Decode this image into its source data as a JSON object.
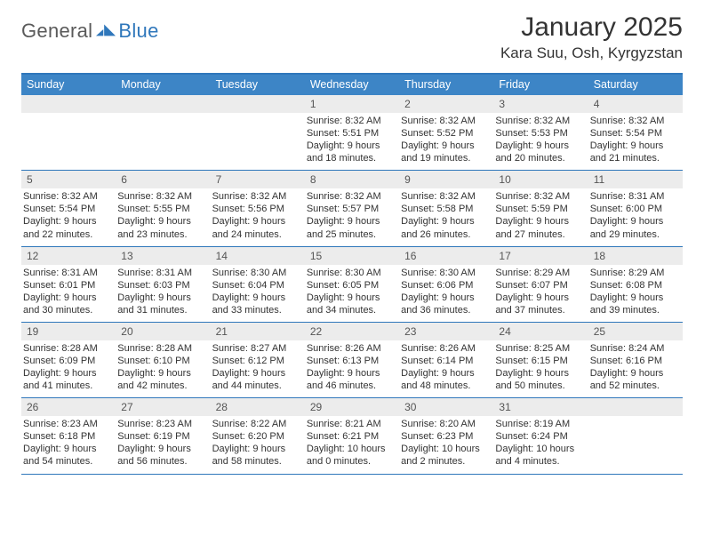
{
  "brand": {
    "general": "General",
    "blue": "Blue"
  },
  "title": "January 2025",
  "location": "Kara Suu, Osh, Kyrgyzstan",
  "colors": {
    "header_bar": "#3d85c6",
    "header_border": "#2f77bb",
    "row_border": "#2f77bb",
    "daynum_bg": "#ececec",
    "text": "#333333",
    "logo_general": "#5a5a5a",
    "logo_blue": "#2f77bb"
  },
  "weekdays": [
    "Sunday",
    "Monday",
    "Tuesday",
    "Wednesday",
    "Thursday",
    "Friday",
    "Saturday"
  ],
  "weeks": [
    [
      {
        "num": "",
        "lines": []
      },
      {
        "num": "",
        "lines": []
      },
      {
        "num": "",
        "lines": []
      },
      {
        "num": "1",
        "lines": [
          "Sunrise: 8:32 AM",
          "Sunset: 5:51 PM",
          "Daylight: 9 hours",
          "and 18 minutes."
        ]
      },
      {
        "num": "2",
        "lines": [
          "Sunrise: 8:32 AM",
          "Sunset: 5:52 PM",
          "Daylight: 9 hours",
          "and 19 minutes."
        ]
      },
      {
        "num": "3",
        "lines": [
          "Sunrise: 8:32 AM",
          "Sunset: 5:53 PM",
          "Daylight: 9 hours",
          "and 20 minutes."
        ]
      },
      {
        "num": "4",
        "lines": [
          "Sunrise: 8:32 AM",
          "Sunset: 5:54 PM",
          "Daylight: 9 hours",
          "and 21 minutes."
        ]
      }
    ],
    [
      {
        "num": "5",
        "lines": [
          "Sunrise: 8:32 AM",
          "Sunset: 5:54 PM",
          "Daylight: 9 hours",
          "and 22 minutes."
        ]
      },
      {
        "num": "6",
        "lines": [
          "Sunrise: 8:32 AM",
          "Sunset: 5:55 PM",
          "Daylight: 9 hours",
          "and 23 minutes."
        ]
      },
      {
        "num": "7",
        "lines": [
          "Sunrise: 8:32 AM",
          "Sunset: 5:56 PM",
          "Daylight: 9 hours",
          "and 24 minutes."
        ]
      },
      {
        "num": "8",
        "lines": [
          "Sunrise: 8:32 AM",
          "Sunset: 5:57 PM",
          "Daylight: 9 hours",
          "and 25 minutes."
        ]
      },
      {
        "num": "9",
        "lines": [
          "Sunrise: 8:32 AM",
          "Sunset: 5:58 PM",
          "Daylight: 9 hours",
          "and 26 minutes."
        ]
      },
      {
        "num": "10",
        "lines": [
          "Sunrise: 8:32 AM",
          "Sunset: 5:59 PM",
          "Daylight: 9 hours",
          "and 27 minutes."
        ]
      },
      {
        "num": "11",
        "lines": [
          "Sunrise: 8:31 AM",
          "Sunset: 6:00 PM",
          "Daylight: 9 hours",
          "and 29 minutes."
        ]
      }
    ],
    [
      {
        "num": "12",
        "lines": [
          "Sunrise: 8:31 AM",
          "Sunset: 6:01 PM",
          "Daylight: 9 hours",
          "and 30 minutes."
        ]
      },
      {
        "num": "13",
        "lines": [
          "Sunrise: 8:31 AM",
          "Sunset: 6:03 PM",
          "Daylight: 9 hours",
          "and 31 minutes."
        ]
      },
      {
        "num": "14",
        "lines": [
          "Sunrise: 8:30 AM",
          "Sunset: 6:04 PM",
          "Daylight: 9 hours",
          "and 33 minutes."
        ]
      },
      {
        "num": "15",
        "lines": [
          "Sunrise: 8:30 AM",
          "Sunset: 6:05 PM",
          "Daylight: 9 hours",
          "and 34 minutes."
        ]
      },
      {
        "num": "16",
        "lines": [
          "Sunrise: 8:30 AM",
          "Sunset: 6:06 PM",
          "Daylight: 9 hours",
          "and 36 minutes."
        ]
      },
      {
        "num": "17",
        "lines": [
          "Sunrise: 8:29 AM",
          "Sunset: 6:07 PM",
          "Daylight: 9 hours",
          "and 37 minutes."
        ]
      },
      {
        "num": "18",
        "lines": [
          "Sunrise: 8:29 AM",
          "Sunset: 6:08 PM",
          "Daylight: 9 hours",
          "and 39 minutes."
        ]
      }
    ],
    [
      {
        "num": "19",
        "lines": [
          "Sunrise: 8:28 AM",
          "Sunset: 6:09 PM",
          "Daylight: 9 hours",
          "and 41 minutes."
        ]
      },
      {
        "num": "20",
        "lines": [
          "Sunrise: 8:28 AM",
          "Sunset: 6:10 PM",
          "Daylight: 9 hours",
          "and 42 minutes."
        ]
      },
      {
        "num": "21",
        "lines": [
          "Sunrise: 8:27 AM",
          "Sunset: 6:12 PM",
          "Daylight: 9 hours",
          "and 44 minutes."
        ]
      },
      {
        "num": "22",
        "lines": [
          "Sunrise: 8:26 AM",
          "Sunset: 6:13 PM",
          "Daylight: 9 hours",
          "and 46 minutes."
        ]
      },
      {
        "num": "23",
        "lines": [
          "Sunrise: 8:26 AM",
          "Sunset: 6:14 PM",
          "Daylight: 9 hours",
          "and 48 minutes."
        ]
      },
      {
        "num": "24",
        "lines": [
          "Sunrise: 8:25 AM",
          "Sunset: 6:15 PM",
          "Daylight: 9 hours",
          "and 50 minutes."
        ]
      },
      {
        "num": "25",
        "lines": [
          "Sunrise: 8:24 AM",
          "Sunset: 6:16 PM",
          "Daylight: 9 hours",
          "and 52 minutes."
        ]
      }
    ],
    [
      {
        "num": "26",
        "lines": [
          "Sunrise: 8:23 AM",
          "Sunset: 6:18 PM",
          "Daylight: 9 hours",
          "and 54 minutes."
        ]
      },
      {
        "num": "27",
        "lines": [
          "Sunrise: 8:23 AM",
          "Sunset: 6:19 PM",
          "Daylight: 9 hours",
          "and 56 minutes."
        ]
      },
      {
        "num": "28",
        "lines": [
          "Sunrise: 8:22 AM",
          "Sunset: 6:20 PM",
          "Daylight: 9 hours",
          "and 58 minutes."
        ]
      },
      {
        "num": "29",
        "lines": [
          "Sunrise: 8:21 AM",
          "Sunset: 6:21 PM",
          "Daylight: 10 hours",
          "and 0 minutes."
        ]
      },
      {
        "num": "30",
        "lines": [
          "Sunrise: 8:20 AM",
          "Sunset: 6:23 PM",
          "Daylight: 10 hours",
          "and 2 minutes."
        ]
      },
      {
        "num": "31",
        "lines": [
          "Sunrise: 8:19 AM",
          "Sunset: 6:24 PM",
          "Daylight: 10 hours",
          "and 4 minutes."
        ]
      },
      {
        "num": "",
        "lines": []
      }
    ]
  ]
}
